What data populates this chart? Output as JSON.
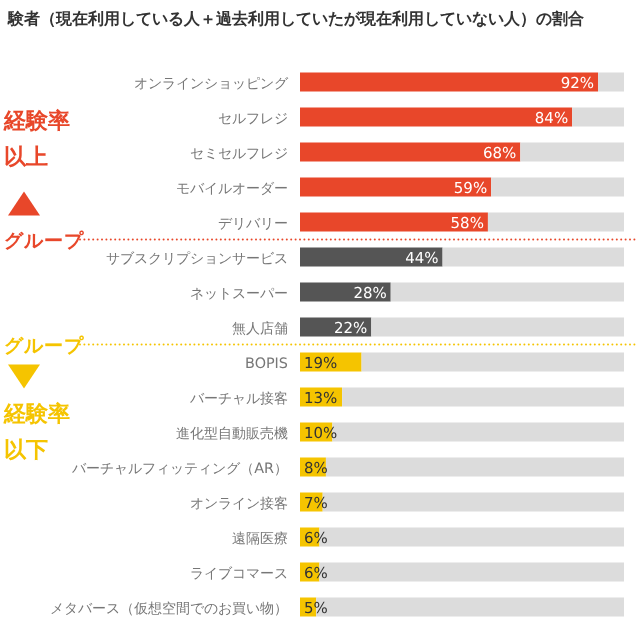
{
  "chart_data": {
    "type": "bar",
    "orientation": "horizontal",
    "stacked": true,
    "title": "験者（現在利用している人＋過去利用していたが現在利用していない人）の割合",
    "categories": [
      "オンラインショッピング",
      "セルフレジ",
      "セミセルフレジ",
      "モバイルオーダー",
      "デリバリー",
      "サブスクリプションサービス",
      "ネットスーパー",
      "無人店舗",
      "BOPIS",
      "バーチャル接客",
      "進化型自動販売機",
      "バーチャルフィッティング（AR）",
      "オンライン接客",
      "遠隔医療",
      "ライブコマース",
      "メタバース（仮想空間でのお買い物）"
    ],
    "series": [
      {
        "values": [
          92,
          84,
          68,
          59,
          58,
          44,
          28,
          22,
          19,
          13,
          10,
          8,
          7,
          6,
          6,
          5
        ],
        "value_labels": [
          "92%",
          "84%",
          "68%",
          "59%",
          "58%",
          "44%",
          "28%",
          "22%",
          "19%",
          "13%",
          "10%",
          "8%",
          "7%",
          "6%",
          "6%",
          "5%"
        ],
        "colors": [
          "#e8472a",
          "#e8472a",
          "#e8472a",
          "#e8472a",
          "#e8472a",
          "#555555",
          "#555555",
          "#555555",
          "#f5c400",
          "#f5c400",
          "#f5c400",
          "#f5c400",
          "#f5c400",
          "#f5c400",
          "#f5c400",
          "#f5c400"
        ]
      },
      {
        "values": [
          8,
          16,
          32,
          41,
          42,
          56,
          72,
          78,
          81,
          87,
          90,
          92,
          93,
          94,
          94,
          95
        ],
        "color": "#dcdcdc"
      }
    ],
    "xlim": [
      0,
      100
    ],
    "annotations": [
      "経験率",
      "以上",
      "グループ",
      "グループ",
      "経験率",
      "以下"
    ]
  }
}
